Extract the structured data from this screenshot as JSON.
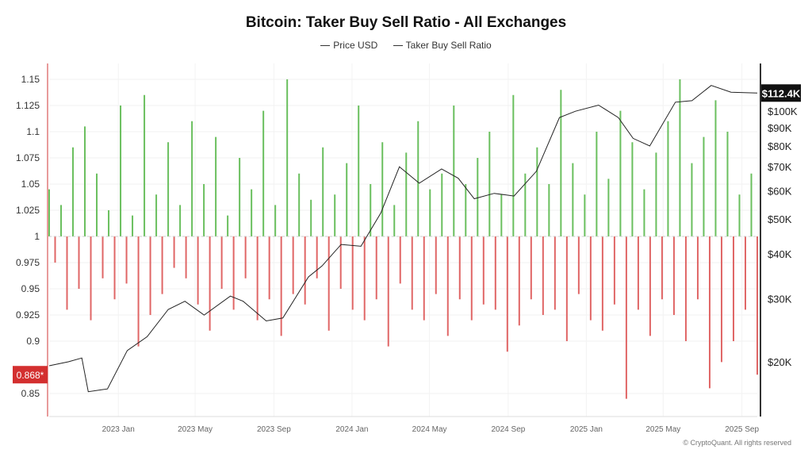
{
  "chart_data": {
    "type": "bar+line",
    "title": "Bitcoin: Taker Buy Sell Ratio - All Exchanges",
    "legend": [
      "Price USD",
      "Taker Buy Sell Ratio"
    ],
    "legend_placement": "top-center",
    "grid": true,
    "x_range": [
      "2022-09-15",
      "2025-09-25"
    ],
    "x_ticks": [
      "2023 Jan",
      "2023 May",
      "2023 Sep",
      "2024 Jan",
      "2024 May",
      "2024 Sep",
      "2025 Jan",
      "2025 May",
      "2025 Sep"
    ],
    "y_left": {
      "ylim": [
        0.835,
        1.165
      ],
      "ticks": [
        "1.15",
        "1.125",
        "1.1",
        "1.075",
        "1.05",
        "1.025",
        "1",
        "0.975",
        "0.95",
        "0.925",
        "0.9",
        "0.85"
      ],
      "baseline": 1,
      "current_label": "0.868*",
      "current_value": 0.868
    },
    "y_right": {
      "scale": "log",
      "ticks": [
        "$100K",
        "$90K",
        "$80K",
        "$70K",
        "$60K",
        "$50K",
        "$40K",
        "$30K",
        "$20K"
      ],
      "current_label": "$112.4K",
      "current_value": 112400
    },
    "colors": {
      "above": "#6abf5e",
      "below": "#e06666",
      "price": "#222222",
      "current_ratio_badge": "#d32f2f",
      "current_price_badge": "#111111"
    },
    "ratio_series": {
      "start": "2022-09-15",
      "end": "2025-09-25",
      "values": [
        1.045,
        0.975,
        1.03,
        0.93,
        1.085,
        0.95,
        1.105,
        0.92,
        1.06,
        0.96,
        1.025,
        0.94,
        1.125,
        0.955,
        1.02,
        0.895,
        1.135,
        0.925,
        1.04,
        0.945,
        1.09,
        0.97,
        1.03,
        0.96,
        1.11,
        0.935,
        1.05,
        0.91,
        1.095,
        0.95,
        1.02,
        0.93,
        1.075,
        0.96,
        1.045,
        0.92,
        1.12,
        0.94,
        1.03,
        0.905,
        1.15,
        0.945,
        1.06,
        0.935,
        1.035,
        0.96,
        1.085,
        0.91,
        1.04,
        0.95,
        1.07,
        0.93,
        1.125,
        0.92,
        1.05,
        0.94,
        1.09,
        0.895,
        1.03,
        0.955,
        1.08,
        0.93,
        1.11,
        0.92,
        1.045,
        0.945,
        1.06,
        0.905,
        1.125,
        0.94,
        1.05,
        0.92,
        1.075,
        0.935,
        1.1,
        0.93,
        1.04,
        0.89,
        1.135,
        0.915,
        1.06,
        0.94,
        1.085,
        0.925,
        1.05,
        0.93,
        1.14,
        0.9,
        1.07,
        0.945,
        1.04,
        0.92,
        1.1,
        0.91,
        1.055,
        0.935,
        1.12,
        0.845,
        1.09,
        0.93,
        1.045,
        0.905,
        1.08,
        0.94,
        1.11,
        0.925,
        1.15,
        0.9,
        1.07,
        0.94,
        1.095,
        0.855,
        1.13,
        0.88,
        1.1,
        0.9,
        1.04,
        0.93,
        1.06,
        0.868
      ]
    },
    "price_series": {
      "dates": [
        "2022-09-15",
        "2022-10-15",
        "2022-11-05",
        "2022-11-15",
        "2022-12-15",
        "2023-01-15",
        "2023-02-15",
        "2023-03-20",
        "2023-04-15",
        "2023-05-15",
        "2023-06-25",
        "2023-07-15",
        "2023-08-20",
        "2023-09-15",
        "2023-10-25",
        "2023-11-15",
        "2023-12-15",
        "2024-01-15",
        "2024-02-15",
        "2024-03-15",
        "2024-04-15",
        "2024-05-20",
        "2024-06-15",
        "2024-07-10",
        "2024-08-10",
        "2024-09-10",
        "2024-10-15",
        "2024-11-20",
        "2024-12-15",
        "2025-01-20",
        "2025-02-20",
        "2025-03-15",
        "2025-04-10",
        "2025-05-20",
        "2025-06-15",
        "2025-07-15",
        "2025-08-15",
        "2025-09-25"
      ],
      "values": [
        19500,
        20000,
        20500,
        16500,
        16800,
        21500,
        23500,
        28000,
        29500,
        27000,
        30500,
        29500,
        26000,
        26500,
        34500,
        37000,
        42500,
        42000,
        52000,
        70000,
        63000,
        69000,
        65000,
        57000,
        59000,
        58000,
        68000,
        96000,
        100000,
        104000,
        96000,
        84000,
        80000,
        106000,
        107000,
        118000,
        113000,
        112400
      ]
    }
  },
  "footer": {
    "credit": "© CryptoQuant. All rights reserved"
  }
}
